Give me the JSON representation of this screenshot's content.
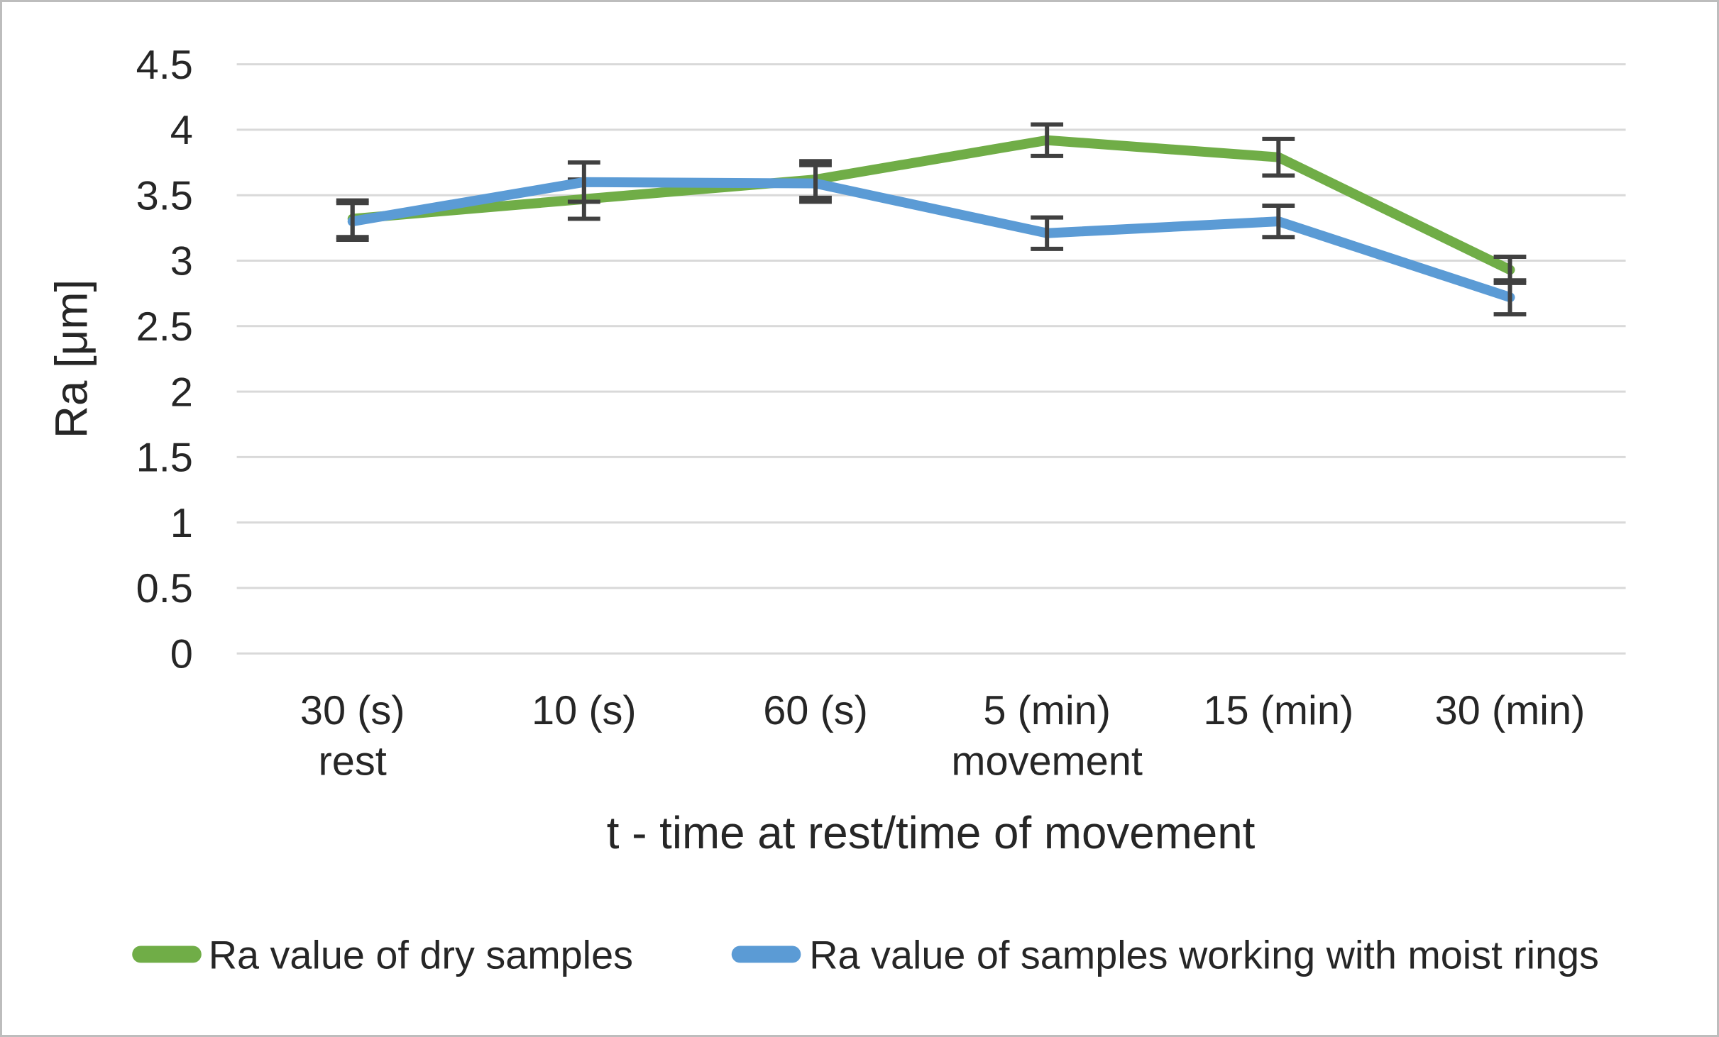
{
  "chart_data": {
    "type": "line",
    "title": "",
    "categories": [
      "30 (s)",
      "10 (s)",
      "60 (s)",
      "5 (min)",
      "15 (min)",
      "30 (min)"
    ],
    "category_sublabels": [
      "rest",
      "",
      "",
      "movement",
      "",
      ""
    ],
    "xlabel": "t - time at rest/time of movement",
    "ylabel": "Ra [μm]",
    "ylim": [
      0,
      4.5
    ],
    "yticks": [
      0,
      0.5,
      1,
      1.5,
      2,
      2.5,
      3,
      3.5,
      4,
      4.5
    ],
    "ytick_labels": [
      "0",
      "0.5",
      "1",
      "1.5",
      "2",
      "2.5",
      "3",
      "3.5",
      "4",
      "4.5"
    ],
    "grid": "horizontal",
    "gridline_color": "#d9d9d9",
    "error_bar_color": "#404040",
    "text_color": "#262626",
    "legend_position": "bottom",
    "series": [
      {
        "name": "Ra value of dry samples",
        "color": "#70AD47",
        "values": [
          3.32,
          3.47,
          3.62,
          3.92,
          3.79,
          2.93
        ],
        "error": [
          0.14,
          0.15,
          0.14,
          0.12,
          0.14,
          0.1
        ]
      },
      {
        "name": "Ra value of samples working with moist rings",
        "color": "#5B9BD5",
        "values": [
          3.3,
          3.6,
          3.59,
          3.21,
          3.3,
          2.72
        ],
        "error": [
          0.14,
          0.15,
          0.14,
          0.12,
          0.12,
          0.13
        ]
      }
    ]
  }
}
